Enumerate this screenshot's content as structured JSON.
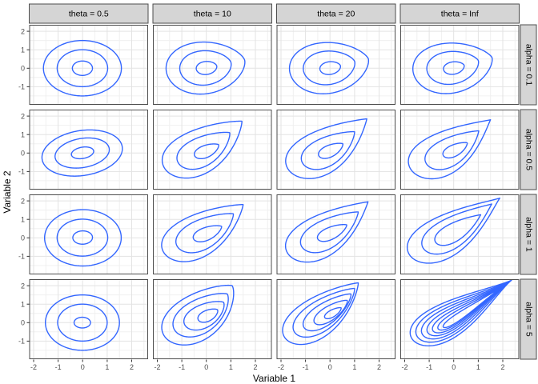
{
  "chart_data": {
    "type": "contour-grid",
    "title": "",
    "xlabel": "Variable 1",
    "ylabel": "Variable 2",
    "facet_layout": "grid: theta (columns) by alpha (rows)",
    "col_facets": [
      "theta = 0.5",
      "theta = 10",
      "theta = 20",
      "theta = Inf"
    ],
    "row_facets": [
      "alpha = 0.1",
      "alpha = 0.5",
      "alpha = 1",
      "alpha = 5"
    ],
    "xlim": [
      -2.18,
      2.67
    ],
    "ylim": [
      -1.98,
      2.35
    ],
    "x_ticks": [
      -2,
      -1,
      0,
      1,
      2
    ],
    "y_ticks": [
      2,
      1,
      0,
      -1
    ],
    "x_tick_labels": [
      "-2",
      "-1",
      "0",
      "1",
      "2"
    ],
    "y_tick_labels": [
      "2",
      "1",
      "0",
      "-1"
    ],
    "x_minor": [
      -1.5,
      -0.5,
      0.5,
      1.5,
      2.5
    ],
    "y_minor": [
      -1.5,
      -0.5,
      0.5,
      1.5
    ],
    "grid": "major and minor gridlines on",
    "legend_position": "none",
    "colors": {
      "contour": "#3366FF",
      "strip_bg": "#D5D5D5",
      "strip_border": "#4D4D4D",
      "panel_bg": "#FFFFFF",
      "panel_border": "#4D4D4D",
      "grid_major": "#E3E3E3",
      "grid_minor": "#F0F0F0",
      "tick_mark": "#333333",
      "tick_label": "#4D4D4D",
      "title_text": "#000000"
    },
    "contour_model": "each contour = teardrop curve from tail point to tip point; w = max width (data units); k = pointiness (0 = ellipse)",
    "panels": [
      {
        "alpha": "0.1",
        "theta": "0.5",
        "contours": [
          {
            "tail": [
              -1.6,
              0.0
            ],
            "tip": [
              1.58,
              0.0
            ],
            "w": 3.0,
            "k": 0
          },
          {
            "tail": [
              -1.04,
              0.0
            ],
            "tip": [
              1.02,
              0.0
            ],
            "w": 2.0,
            "k": 0
          },
          {
            "tail": [
              -0.42,
              -0.02
            ],
            "tip": [
              0.4,
              0.02
            ],
            "w": 0.78,
            "k": 0
          }
        ]
      },
      {
        "alpha": "0.1",
        "theta": "10",
        "contours": [
          {
            "tail": [
              -1.6,
              -0.35
            ],
            "tip": [
              1.56,
              0.45
            ],
            "w": 2.8,
            "k": 0.25
          },
          {
            "tail": [
              -1.05,
              -0.25
            ],
            "tip": [
              1.0,
              0.33
            ],
            "w": 1.85,
            "k": 0.2
          },
          {
            "tail": [
              -0.4,
              -0.1
            ],
            "tip": [
              0.42,
              0.14
            ],
            "w": 0.7,
            "k": 0.15
          }
        ]
      },
      {
        "alpha": "0.1",
        "theta": "20",
        "contours": [
          {
            "tail": [
              -1.6,
              -0.4
            ],
            "tip": [
              1.56,
              0.52
            ],
            "w": 2.75,
            "k": 0.3
          },
          {
            "tail": [
              -1.05,
              -0.28
            ],
            "tip": [
              1.0,
              0.38
            ],
            "w": 1.8,
            "k": 0.25
          },
          {
            "tail": [
              -0.4,
              -0.12
            ],
            "tip": [
              0.42,
              0.15
            ],
            "w": 0.68,
            "k": 0.15
          }
        ]
      },
      {
        "alpha": "0.1",
        "theta": "Inf",
        "contours": [
          {
            "tail": [
              -1.6,
              -0.45
            ],
            "tip": [
              1.56,
              0.58
            ],
            "w": 2.7,
            "k": 0.35
          },
          {
            "tail": [
              -1.05,
              -0.3
            ],
            "tip": [
              1.0,
              0.42
            ],
            "w": 1.75,
            "k": 0.3
          },
          {
            "tail": [
              -0.4,
              -0.13
            ],
            "tip": [
              0.42,
              0.17
            ],
            "w": 0.66,
            "k": 0.2
          }
        ]
      },
      {
        "alpha": "0.5",
        "theta": "0.5",
        "contours": [
          {
            "tail": [
              -1.62,
              -0.5
            ],
            "tip": [
              1.58,
              0.5
            ],
            "w": 2.4,
            "k": 0
          },
          {
            "tail": [
              -1.1,
              -0.35
            ],
            "tip": [
              1.06,
              0.35
            ],
            "w": 1.55,
            "k": 0
          },
          {
            "tail": [
              -0.45,
              -0.13
            ],
            "tip": [
              0.44,
              0.15
            ],
            "w": 0.6,
            "k": 0
          }
        ]
      },
      {
        "alpha": "0.5",
        "theta": "10",
        "contours": [
          {
            "tail": [
              -1.55,
              -1.05
            ],
            "tip": [
              1.45,
              1.72
            ],
            "w": 2.2,
            "k": 0.8
          },
          {
            "tail": [
              -1.05,
              -0.68
            ],
            "tip": [
              0.95,
              1.1
            ],
            "w": 1.45,
            "k": 0.65
          },
          {
            "tail": [
              -0.45,
              -0.2
            ],
            "tip": [
              0.5,
              0.45
            ],
            "w": 0.62,
            "k": 0.45
          }
        ]
      },
      {
        "alpha": "0.5",
        "theta": "20",
        "contours": [
          {
            "tail": [
              -1.55,
              -1.1
            ],
            "tip": [
              1.5,
              1.85
            ],
            "w": 2.15,
            "k": 0.95
          },
          {
            "tail": [
              -1.02,
              -0.7
            ],
            "tip": [
              1.0,
              1.15
            ],
            "w": 1.42,
            "k": 0.75
          },
          {
            "tail": [
              -0.43,
              -0.2
            ],
            "tip": [
              0.52,
              0.5
            ],
            "w": 0.6,
            "k": 0.5
          }
        ]
      },
      {
        "alpha": "0.5",
        "theta": "Inf",
        "contours": [
          {
            "tail": [
              -1.6,
              -1.1
            ],
            "tip": [
              1.5,
              1.8
            ],
            "w": 2.1,
            "k": 1.1
          },
          {
            "tail": [
              -1.02,
              -0.72
            ],
            "tip": [
              1.02,
              1.2
            ],
            "w": 1.38,
            "k": 0.85
          },
          {
            "tail": [
              -0.4,
              -0.18
            ],
            "tip": [
              0.55,
              0.55
            ],
            "w": 0.58,
            "k": 0.55
          }
        ]
      },
      {
        "alpha": "1",
        "theta": "0.5",
        "contours": [
          {
            "tail": [
              -1.55,
              -0.1
            ],
            "tip": [
              1.57,
              0.1
            ],
            "w": 3.05,
            "k": 0
          },
          {
            "tail": [
              -1.04,
              -0.06
            ],
            "tip": [
              1.02,
              0.08
            ],
            "w": 2.0,
            "k": 0
          },
          {
            "tail": [
              -0.4,
              -0.02
            ],
            "tip": [
              0.4,
              0.05
            ],
            "w": 0.72,
            "k": 0
          }
        ]
      },
      {
        "alpha": "1",
        "theta": "10",
        "contours": [
          {
            "tail": [
              -1.6,
              -1.0
            ],
            "tip": [
              1.5,
              1.8
            ],
            "w": 2.1,
            "k": 0.85
          },
          {
            "tail": [
              -1.1,
              -0.6
            ],
            "tip": [
              1.1,
              1.3
            ],
            "w": 1.48,
            "k": 0.7
          },
          {
            "tail": [
              -0.5,
              -0.1
            ],
            "tip": [
              0.62,
              0.62
            ],
            "w": 0.66,
            "k": 0.5
          }
        ]
      },
      {
        "alpha": "1",
        "theta": "20",
        "contours": [
          {
            "tail": [
              -1.58,
              -1.05
            ],
            "tip": [
              1.55,
              1.95
            ],
            "w": 2.05,
            "k": 1.0
          },
          {
            "tail": [
              -1.06,
              -0.62
            ],
            "tip": [
              1.15,
              1.4
            ],
            "w": 1.42,
            "k": 0.8
          },
          {
            "tail": [
              -0.48,
              -0.1
            ],
            "tip": [
              0.68,
              0.7
            ],
            "w": 0.62,
            "k": 0.55
          }
        ]
      },
      {
        "alpha": "1",
        "theta": "Inf",
        "contours": [
          {
            "tail": [
              -1.68,
              -1.1
            ],
            "tip": [
              1.88,
              2.15
            ],
            "w": 2.05,
            "k": 1.2
          },
          {
            "tail": [
              -1.15,
              -0.7
            ],
            "tip": [
              1.55,
              1.83
            ],
            "w": 1.5,
            "k": 1.1
          },
          {
            "tail": [
              -0.7,
              -0.3
            ],
            "tip": [
              1.1,
              1.25
            ],
            "w": 0.9,
            "k": 0.95
          }
        ]
      },
      {
        "alpha": "5",
        "theta": "0.5",
        "contours": [
          {
            "tail": [
              -1.52,
              0.0
            ],
            "tip": [
              1.5,
              0.0
            ],
            "w": 3.0,
            "k": 0
          },
          {
            "tail": [
              -1.02,
              0.0
            ],
            "tip": [
              1.0,
              0.0
            ],
            "w": 2.0,
            "k": 0
          },
          {
            "tail": [
              -0.35,
              0.0
            ],
            "tip": [
              0.32,
              0.0
            ],
            "w": 0.58,
            "k": 0
          }
        ]
      },
      {
        "alpha": "5",
        "theta": "10",
        "contours": [
          {
            "tail": [
              -1.5,
              -1.0
            ],
            "tip": [
              1.05,
              2.0
            ],
            "w": 2.2,
            "k": 0.55
          },
          {
            "tail": [
              -1.15,
              -0.6
            ],
            "tip": [
              0.85,
              1.55
            ],
            "w": 1.65,
            "k": 0.5
          },
          {
            "tail": [
              -0.8,
              -0.25
            ],
            "tip": [
              0.7,
              1.1
            ],
            "w": 1.15,
            "k": 0.45
          },
          {
            "tail": [
              -0.3,
              0.1
            ],
            "tip": [
              0.45,
              0.7
            ],
            "w": 0.55,
            "k": 0.35
          }
        ]
      },
      {
        "alpha": "5",
        "theta": "20",
        "contours": [
          {
            "tail": [
              -1.7,
              -1.0
            ],
            "tip": [
              1.15,
              2.15
            ],
            "w": 1.9,
            "k": 0.8
          },
          {
            "tail": [
              -1.35,
              -0.65
            ],
            "tip": [
              1.0,
              1.85
            ],
            "w": 1.45,
            "k": 0.7
          },
          {
            "tail": [
              -1.0,
              -0.35
            ],
            "tip": [
              0.85,
              1.55
            ],
            "w": 1.05,
            "k": 0.6
          },
          {
            "tail": [
              -0.6,
              -0.05
            ],
            "tip": [
              0.7,
              1.2
            ],
            "w": 0.7,
            "k": 0.5
          },
          {
            "tail": [
              -0.2,
              0.25
            ],
            "tip": [
              0.45,
              0.8
            ],
            "w": 0.35,
            "k": 0.4
          }
        ]
      },
      {
        "alpha": "5",
        "theta": "Inf",
        "contours": [
          {
            "tail": [
              -1.62,
              -1.0
            ],
            "tip": [
              2.36,
              2.3
            ],
            "w": 1.8,
            "k": 1.6
          },
          {
            "tail": [
              -1.42,
              -0.86
            ],
            "tip": [
              2.33,
              2.27
            ],
            "w": 1.5,
            "k": 1.8
          },
          {
            "tail": [
              -1.22,
              -0.73
            ],
            "tip": [
              2.3,
              2.24
            ],
            "w": 1.23,
            "k": 2.0
          },
          {
            "tail": [
              -1.02,
              -0.6
            ],
            "tip": [
              2.28,
              2.22
            ],
            "w": 0.98,
            "k": 2.2
          },
          {
            "tail": [
              -0.82,
              -0.48
            ],
            "tip": [
              2.26,
              2.2
            ],
            "w": 0.75,
            "k": 2.4
          },
          {
            "tail": [
              -0.62,
              -0.36
            ],
            "tip": [
              2.24,
              2.18
            ],
            "w": 0.54,
            "k": 2.6
          },
          {
            "tail": [
              -0.42,
              -0.25
            ],
            "tip": [
              2.22,
              2.16
            ],
            "w": 0.34,
            "k": 2.8
          }
        ]
      }
    ]
  }
}
